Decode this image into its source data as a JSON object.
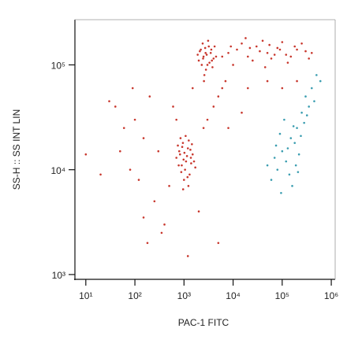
{
  "chart_data": {
    "type": "scatter",
    "x_label": "PAC-1 FITC",
    "y_label": "SS-H :: SS INT LIN",
    "log_x": true,
    "log_y": true,
    "xlim": [
      6,
      1200000
    ],
    "ylim": [
      900,
      270000
    ],
    "xticks": [
      {
        "value": 10,
        "label": "10¹"
      },
      {
        "value": 100,
        "label": "10²"
      },
      {
        "value": 1000,
        "label": "10³"
      },
      {
        "value": 10000,
        "label": "10⁴"
      },
      {
        "value": 100000,
        "label": "10⁵"
      },
      {
        "value": 1000000,
        "label": "10⁶"
      }
    ],
    "yticks": [
      {
        "value": 1000,
        "label": "10³"
      },
      {
        "value": 10000,
        "label": "10⁴"
      },
      {
        "value": 100000,
        "label": "10⁵"
      }
    ],
    "series": [
      {
        "color": "#c8372d",
        "x": [
          800,
          1100,
          950,
          1300,
          700,
          1200,
          900,
          1500,
          1000,
          850,
          1150,
          1400,
          750,
          1050,
          1250,
          980,
          1600,
          880,
          1350,
          1020,
          780,
          1180,
          1450,
          920,
          1080,
          1700,
          1230,
          830,
          1380,
          960,
          2500,
          3000,
          2200,
          3500,
          2800,
          2000,
          3200,
          2600,
          4000,
          2400,
          3800,
          2900,
          2100,
          3300,
          2700,
          4500,
          2300,
          3600,
          2550,
          3100,
          1900,
          3700,
          2750,
          4200,
          2450,
          8000,
          12000,
          20000,
          30000,
          50000,
          80000,
          120000,
          200000,
          300000,
          15000,
          25000,
          40000,
          60000,
          100000,
          150000,
          250000,
          6000,
          10000,
          35000,
          70000,
          180000,
          400000,
          18000,
          45000,
          90000,
          22000,
          130000,
          55000,
          9000,
          350000,
          5000,
          4000,
          6000,
          3000,
          2500,
          7000,
          20000,
          50000,
          100000,
          200000,
          40,
          60,
          100,
          150,
          200,
          300,
          80,
          120,
          250,
          400,
          500,
          600,
          150,
          90,
          50,
          30,
          20,
          180,
          350,
          2000,
          5000,
          8000,
          15000,
          1500,
          700,
          1200,
          10
        ],
        "y": [
          15000,
          12000,
          18000,
          9000,
          13000,
          16000,
          11000,
          14000,
          8000,
          20000,
          13500,
          11500,
          17000,
          10000,
          19000,
          12500,
          12000,
          9500,
          15500,
          14500,
          11000,
          8500,
          17500,
          16500,
          21000,
          10500,
          7000,
          14000,
          13000,
          6500,
          120000,
          100000,
          140000,
          130000,
          90000,
          110000,
          150000,
          80000,
          115000,
          160000,
          95000,
          125000,
          135000,
          105000,
          145000,
          120000,
          100000,
          140000,
          70000,
          170000,
          125000,
          110000,
          130000,
          150000,
          115000,
          130000,
          140000,
          120000,
          150000,
          130000,
          145000,
          125000,
          140000,
          135000,
          160000,
          110000,
          170000,
          115000,
          165000,
          120000,
          160000,
          120000,
          100000,
          135000,
          125000,
          150000,
          130000,
          180000,
          95000,
          140000,
          145000,
          105000,
          155000,
          150000,
          115000,
          50000,
          40000,
          60000,
          30000,
          25000,
          70000,
          60000,
          70000,
          60000,
          70000,
          40000,
          25000,
          30000,
          20000,
          50000,
          15000,
          10000,
          8000,
          5000,
          3000,
          7000,
          40000,
          3500,
          60000,
          15000,
          45000,
          9000,
          2000,
          2500,
          4000,
          2000,
          25000,
          35000,
          60000,
          30000,
          1500,
          14000
        ]
      },
      {
        "color": "#3a9db0",
        "x": [
          100000,
          150000,
          80000,
          200000,
          120000,
          60000,
          250000,
          300000,
          180000,
          90000,
          140000,
          220000,
          70000,
          110000,
          400000,
          500000,
          350000,
          160000,
          50000,
          280000,
          130000,
          190000,
          95000,
          450000,
          600000,
          240000,
          170000,
          75000,
          320000,
          210000
        ],
        "y": [
          15000,
          20000,
          10000,
          25000,
          12000,
          8000,
          35000,
          50000,
          18000,
          22000,
          9000,
          14000,
          13000,
          30000,
          60000,
          80000,
          40000,
          7000,
          11000,
          28000,
          16000,
          11000,
          6000,
          45000,
          70000,
          21000,
          26000,
          17000,
          33000,
          9500
        ]
      }
    ]
  }
}
